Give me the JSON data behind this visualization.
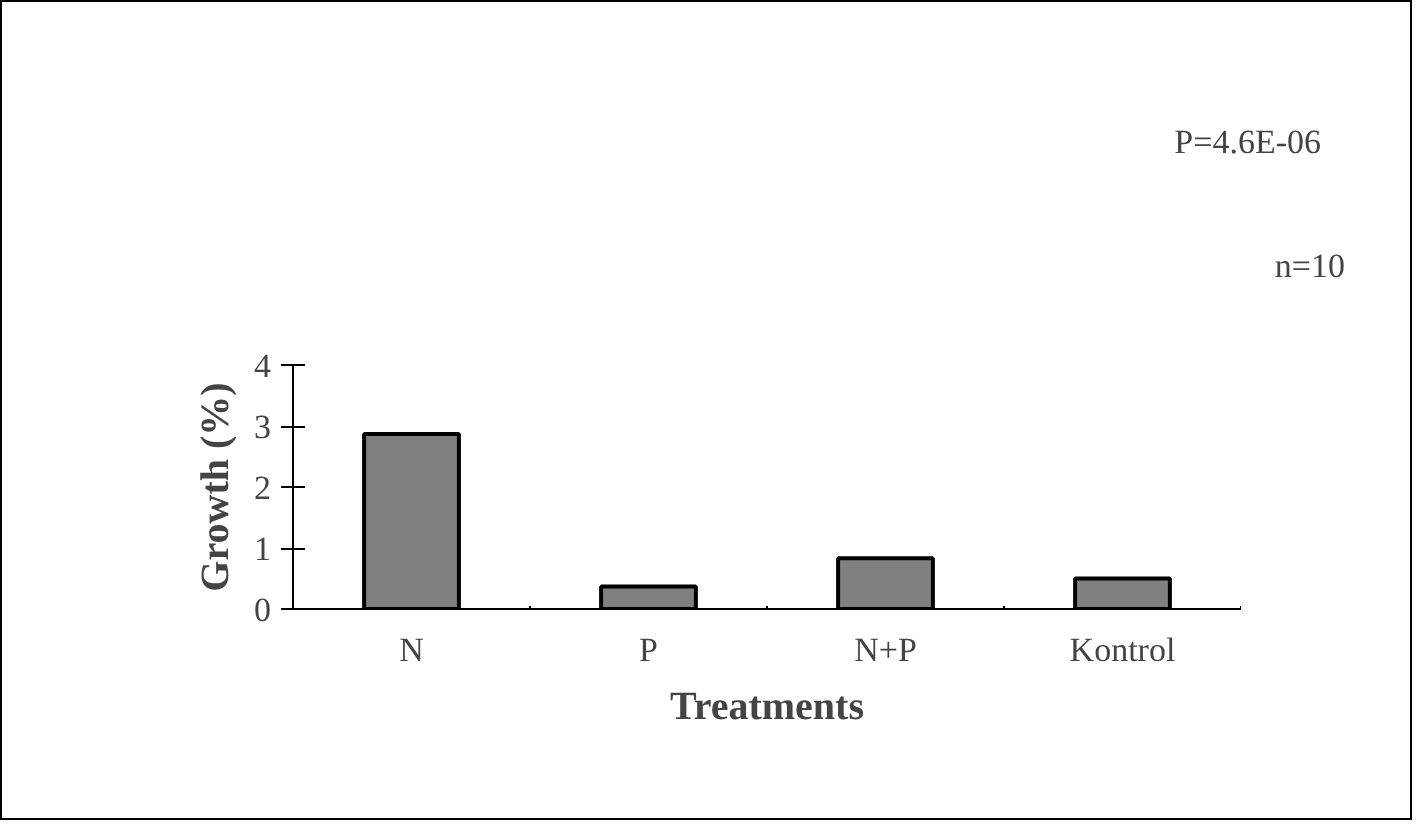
{
  "chart_data": {
    "type": "bar",
    "xlabel": "Treatments",
    "ylabel": "Growth (%)",
    "categories": [
      "N",
      "P",
      "N+P",
      "Kontrol"
    ],
    "values": [
      2.87,
      0.37,
      0.83,
      0.5
    ],
    "color": "#808080",
    "ylim": [
      0,
      4
    ],
    "yticks": [
      0,
      1,
      2,
      3,
      4
    ],
    "grid": false,
    "annotations": [
      "P=4.6E-06",
      "n=10"
    ]
  }
}
